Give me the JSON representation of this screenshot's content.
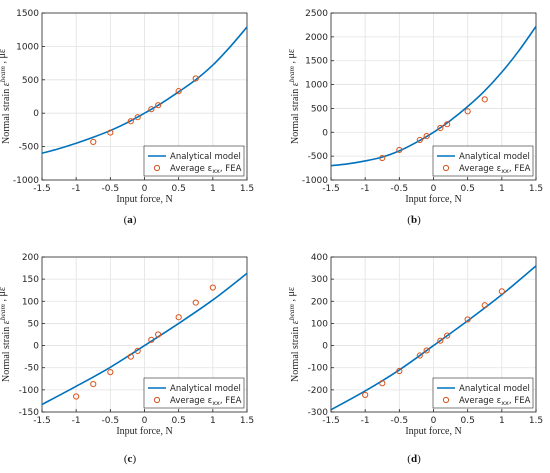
{
  "chart_data": [
    {
      "type": "line",
      "caption": "(a)",
      "xlabel": "Input force, N",
      "ylabel": "Normal strain ε_xx^beam , με",
      "xlim": [
        -1.5,
        1.5
      ],
      "ylim": [
        -1000,
        1500
      ],
      "xticks": [
        -1.5,
        -1,
        -0.5,
        0,
        0.5,
        1,
        1.5
      ],
      "yticks": [
        -1000,
        -500,
        0,
        500,
        1000,
        1500
      ],
      "xtick_labels": [
        "-1.5",
        "-1",
        "-0.5",
        "0",
        "0.5",
        "1",
        "1.5"
      ],
      "ytick_labels": [
        "-1000",
        "-500",
        "0",
        "500",
        "1000",
        "1500"
      ],
      "grid": true,
      "legend_position": "bottom-right",
      "series": [
        {
          "name": "Analytical model",
          "kind": "line",
          "color": "#0072bd",
          "x": [
            -1.5,
            -1.25,
            -1,
            -0.75,
            -0.5,
            -0.25,
            0,
            0.25,
            0.5,
            0.75,
            1,
            1.25,
            1.5
          ],
          "y": [
            -600,
            -530,
            -450,
            -360,
            -260,
            -140,
            0,
            150,
            320,
            500,
            720,
            990,
            1290
          ]
        },
        {
          "name": "Average ε_xx, FEA",
          "kind": "scatter",
          "color": "#d95319",
          "x": [
            -0.75,
            -0.5,
            -0.2,
            -0.1,
            0.1,
            0.2,
            0.5,
            0.75
          ],
          "y": [
            -430,
            -290,
            -120,
            -60,
            60,
            120,
            330,
            520
          ]
        }
      ]
    },
    {
      "type": "line",
      "caption": "(b)",
      "xlabel": "Input force, N",
      "ylabel": "Normal strain ε_xx^beam , με",
      "xlim": [
        -1.5,
        1.5
      ],
      "ylim": [
        -1000,
        2500
      ],
      "xticks": [
        -1.5,
        -1,
        -0.5,
        0,
        0.5,
        1,
        1.5
      ],
      "yticks": [
        -1000,
        -500,
        0,
        500,
        1000,
        1500,
        2000,
        2500
      ],
      "xtick_labels": [
        "-1.5",
        "-1",
        "-0.5",
        "0",
        "0.5",
        "1",
        "1.5"
      ],
      "ytick_labels": [
        "-1000",
        "-500",
        "0",
        "500",
        "1000",
        "1500",
        "2000",
        "2500"
      ],
      "grid": true,
      "legend_position": "bottom-right",
      "series": [
        {
          "name": "Analytical model",
          "kind": "line",
          "color": "#0072bd",
          "x": [
            -1.5,
            -1.25,
            -1,
            -0.75,
            -0.5,
            -0.25,
            0,
            0.25,
            0.5,
            0.75,
            1,
            1.25,
            1.5
          ],
          "y": [
            -700,
            -660,
            -600,
            -520,
            -390,
            -210,
            0,
            250,
            540,
            870,
            1260,
            1710,
            2220
          ]
        },
        {
          "name": "Average ε_xx, FEA",
          "kind": "scatter",
          "color": "#d95319",
          "x": [
            -0.75,
            -0.5,
            -0.2,
            -0.1,
            0.1,
            0.2,
            0.5,
            0.75
          ],
          "y": [
            -540,
            -370,
            -160,
            -80,
            90,
            170,
            440,
            690
          ]
        }
      ]
    },
    {
      "type": "line",
      "caption": "(c)",
      "xlabel": "Input force, N",
      "ylabel": "Normal strain ε_xx^beam , με",
      "xlim": [
        -1.5,
        1.5
      ],
      "ylim": [
        -150,
        200
      ],
      "xticks": [
        -1.5,
        -1,
        -0.5,
        0,
        0.5,
        1,
        1.5
      ],
      "yticks": [
        -150,
        -100,
        -50,
        0,
        50,
        100,
        150,
        200
      ],
      "xtick_labels": [
        "-1.5",
        "-1",
        "-0.5",
        "0",
        "0.5",
        "1",
        "1.5"
      ],
      "ytick_labels": [
        "-150",
        "-100",
        "-50",
        "0",
        "50",
        "100",
        "150",
        "200"
      ],
      "grid": true,
      "legend_position": "bottom-right",
      "series": [
        {
          "name": "Analytical model",
          "kind": "line",
          "color": "#0072bd",
          "x": [
            -1.5,
            -1,
            -0.5,
            0,
            0.5,
            1,
            1.5
          ],
          "y": [
            -133,
            -92,
            -49,
            0,
            50,
            103,
            163
          ]
        },
        {
          "name": "Average ε_xx, FEA",
          "kind": "scatter",
          "color": "#d95319",
          "x": [
            -1,
            -0.75,
            -0.5,
            -0.2,
            -0.1,
            0.1,
            0.2,
            0.5,
            0.75,
            1
          ],
          "y": [
            -115,
            -87,
            -60,
            -25,
            -12,
            13,
            25,
            64,
            97,
            131
          ]
        }
      ]
    },
    {
      "type": "line",
      "caption": "(d)",
      "xlabel": "Input force, N",
      "ylabel": "Normal strain ε_xx^beam , με",
      "xlim": [
        -1.5,
        1.5
      ],
      "ylim": [
        -300,
        400
      ],
      "xticks": [
        -1.5,
        -1,
        -0.5,
        0,
        0.5,
        1,
        1.5
      ],
      "yticks": [
        -300,
        -200,
        -100,
        0,
        100,
        200,
        300,
        400
      ],
      "xtick_labels": [
        "-1.5",
        "-1",
        "-0.5",
        "0",
        "0.5",
        "1",
        "1.5"
      ],
      "ytick_labels": [
        "-300",
        "-200",
        "-100",
        "0",
        "100",
        "200",
        "300",
        "400"
      ],
      "grid": true,
      "legend_position": "bottom-right",
      "series": [
        {
          "name": "Analytical model",
          "kind": "line",
          "color": "#0072bd",
          "x": [
            -1.5,
            -1,
            -0.5,
            0,
            0.5,
            1,
            1.5
          ],
          "y": [
            -290,
            -205,
            -110,
            0,
            112,
            230,
            360
          ]
        },
        {
          "name": "Average ε_xx, FEA",
          "kind": "scatter",
          "color": "#d95319",
          "x": [
            -1,
            -0.75,
            -0.5,
            -0.2,
            -0.1,
            0.1,
            0.2,
            0.5,
            0.75,
            1
          ],
          "y": [
            -223,
            -170,
            -115,
            -45,
            -22,
            22,
            45,
            118,
            182,
            245
          ]
        }
      ]
    }
  ]
}
